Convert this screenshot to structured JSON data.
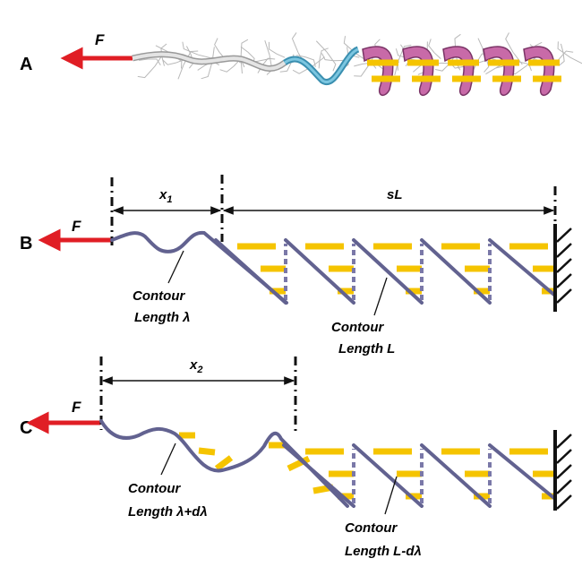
{
  "panel_a": {
    "label": "A",
    "force": "F"
  },
  "panel_b": {
    "label": "B",
    "force": "F",
    "x_label": {
      "var": "x",
      "sub": "1"
    },
    "span_label": "sL",
    "contour_1": [
      "Contour",
      "Length λ"
    ],
    "contour_2": [
      "Contour",
      "Length  L"
    ]
  },
  "panel_c": {
    "label": "C",
    "force": "F",
    "x_label": {
      "var": "x",
      "sub": "2"
    },
    "contour_1": [
      "Contour",
      "Length λ+dλ"
    ],
    "contour_2": [
      "Contour",
      "Length  L-dλ"
    ]
  }
}
